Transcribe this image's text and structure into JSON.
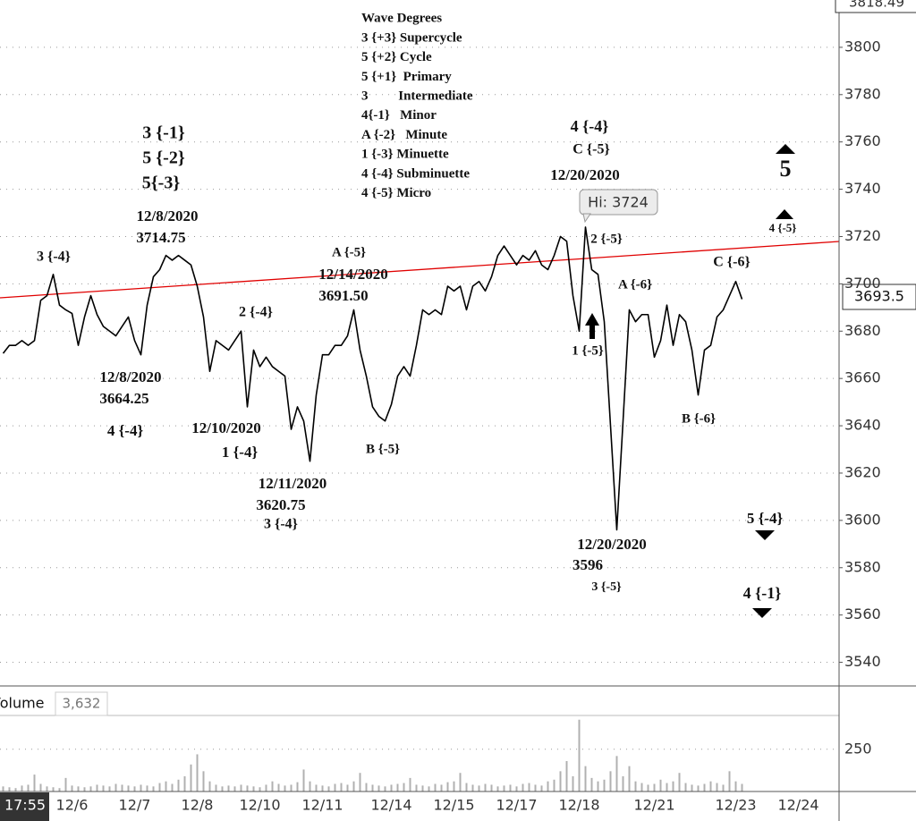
{
  "chart_data": [
    {
      "type": "line",
      "color": "#000000",
      "grid": true,
      "scale_high": "3818.49",
      "high_label": "Hi: 3724",
      "cursor_time": "17:55",
      "categories": [
        null,
        null,
        null,
        null,
        null,
        null,
        null,
        null,
        null,
        null,
        null,
        "12/6",
        null,
        null,
        null,
        null,
        null,
        null,
        null,
        null,
        null,
        "12/7",
        null,
        null,
        null,
        null,
        null,
        null,
        null,
        null,
        null,
        "12/8",
        null,
        null,
        null,
        null,
        null,
        null,
        null,
        null,
        null,
        "12/10",
        null,
        null,
        null,
        null,
        null,
        null,
        null,
        null,
        null,
        "12/11",
        null,
        null,
        null,
        null,
        null,
        null,
        null,
        null,
        null,
        null,
        "12/14",
        null,
        null,
        null,
        null,
        null,
        null,
        null,
        null,
        null,
        "12/15",
        null,
        null,
        null,
        null,
        null,
        null,
        null,
        null,
        null,
        "12/17",
        null,
        null,
        null,
        null,
        null,
        null,
        null,
        null,
        null,
        "12/18",
        null,
        null,
        null,
        null,
        null,
        null,
        null,
        null,
        null,
        null,
        null,
        "12/21",
        null,
        null,
        null,
        null,
        null,
        null,
        null,
        null,
        null,
        null,
        null,
        null,
        "12/23",
        null,
        null,
        null,
        null,
        null,
        null,
        null,
        null,
        null,
        "12/24",
        null,
        null,
        null,
        null,
        null,
        null
      ],
      "values": [
        3670.6,
        3674,
        3674,
        3676,
        3674,
        3676,
        3693,
        3695,
        3704,
        3691,
        3689,
        3687.5,
        3674,
        3686,
        3695,
        3687,
        3682,
        3680,
        3678,
        3682,
        3686,
        3676,
        3670,
        3691,
        3703,
        3706,
        3712,
        3710,
        3712,
        3710,
        3708,
        3699,
        3686,
        3663,
        3676,
        3674,
        3672,
        3676,
        3680,
        3648,
        3672,
        3665,
        3669,
        3665,
        3663,
        3661,
        3638.5,
        3648,
        3642,
        3625,
        3653,
        3670,
        3670,
        3674,
        3674,
        3678,
        3689,
        3672,
        3661,
        3648,
        3644,
        3642,
        3649,
        3661,
        3665,
        3661,
        3674,
        3689,
        3687,
        3689,
        3687,
        3699,
        3697,
        3699,
        3689,
        3699,
        3701,
        3697,
        3703,
        3712,
        3716,
        3712,
        3708,
        3712,
        3710,
        3714,
        3708,
        3706,
        3712,
        3720,
        3718,
        3695,
        3680,
        3724,
        3706,
        3704,
        3684,
        3640,
        3596,
        3642,
        3689,
        3684,
        3687,
        3687,
        3669,
        3676,
        3691,
        3674,
        3687,
        3684,
        3672,
        3653,
        3672,
        3674,
        3686,
        3689,
        3695,
        3701,
        3693.5,
        null,
        null,
        null,
        null,
        null,
        null,
        null,
        null,
        null,
        null,
        null,
        null,
        null,
        null,
        null
      ],
      "ylim": [
        3530,
        3820
      ],
      "yticks": [
        3540,
        3560,
        3580,
        3600,
        3620,
        3640,
        3660,
        3680,
        3700,
        3720,
        3740,
        3760,
        3780,
        3800
      ],
      "wave_degrees": {
        "title": "Wave Degrees",
        "items": [
          "3 {+3} Supercycle",
          "5 {+2} Cycle",
          "5 {+1}  Primary",
          "3         Intermediate",
          "4{-1}   Minor",
          "A {-2}   Minute",
          "1 {-3} Minuette",
          "4 {-4} Subminuette",
          "4 {-5} Micro"
        ]
      },
      "annotations": [
        "3 {-1}",
        "5 {-2}",
        "5{-3}",
        "12/8/2020",
        "3714.75",
        "3 {-4}",
        "12/8/2020",
        "3664.25",
        "4 {-4}",
        "2 {-4}",
        "12/10/2020",
        "1 {-4}",
        "12/11/2020",
        "3620.75",
        "3 {-4}",
        "A {-5}",
        "12/14/2020",
        "3691.50",
        "B {-5}",
        "4 {-4}",
        "C {-5}",
        "12/20/2020",
        "2 {-5}",
        "A {-6}",
        "1 {-5}",
        "C {-6}",
        "B {-6}",
        "12/20/2020",
        "3596",
        "3 {-5}",
        "5",
        "4 {-5}",
        "5 {-4}",
        "4 {-1}"
      ]
    },
    {
      "type": "bar",
      "title": "Volume",
      "value_readout": "3,632",
      "color": "#b0b0b0",
      "values": [
        30,
        25,
        20,
        35,
        40,
        100,
        45,
        30,
        25,
        20,
        80,
        35,
        30,
        25,
        30,
        40,
        35,
        30,
        45,
        40,
        35,
        30,
        40,
        35,
        30,
        50,
        60,
        45,
        70,
        90,
        160,
        220,
        120,
        60,
        40,
        30,
        35,
        30,
        40,
        35,
        30,
        25,
        40,
        60,
        45,
        35,
        40,
        55,
        130,
        60,
        40,
        35,
        30,
        45,
        50,
        40,
        60,
        110,
        50,
        40,
        35,
        30,
        40,
        45,
        50,
        80,
        40,
        35,
        30,
        45,
        40,
        55,
        60,
        110,
        50,
        40,
        35,
        45,
        40,
        30,
        35,
        40,
        30,
        45,
        50,
        40,
        35,
        60,
        70,
        120,
        180,
        90,
        425,
        150,
        80,
        60,
        70,
        120,
        210,
        90,
        150,
        60,
        50,
        40,
        45,
        70,
        50,
        60,
        110,
        50,
        40,
        35,
        45,
        60,
        50,
        40,
        120,
        60,
        45,
        null,
        null,
        null,
        null,
        null,
        null,
        null,
        null,
        null,
        null,
        null,
        null,
        null,
        null,
        null,
        null
      ],
      "ylim": [
        0,
        450
      ],
      "yticks": [
        250
      ]
    }
  ]
}
